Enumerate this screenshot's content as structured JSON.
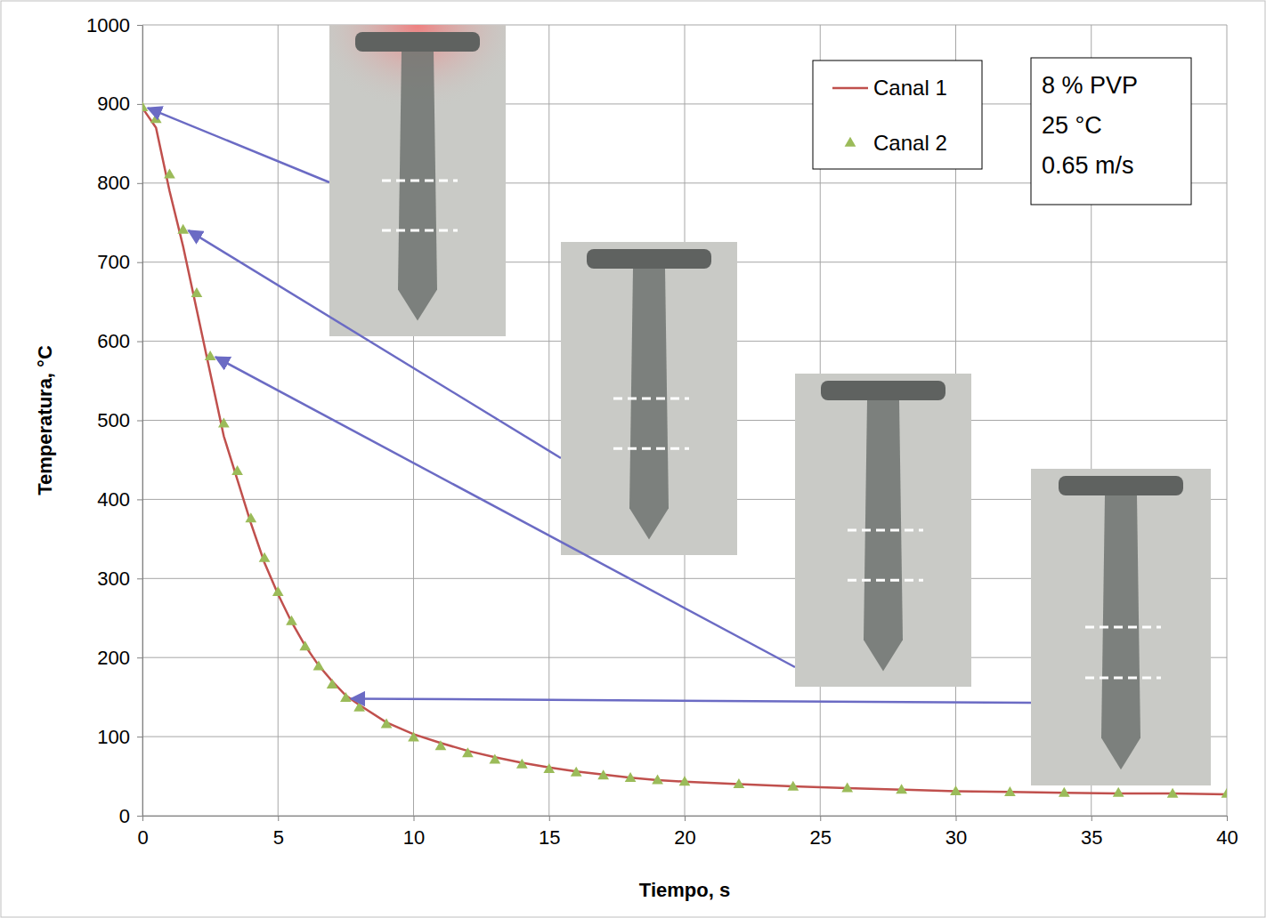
{
  "chart_data": {
    "type": "line",
    "x_label": "Tiempo, s",
    "y_label": "Temperatura, °C",
    "x": [
      0,
      0.5,
      1,
      1.5,
      2,
      2.5,
      3,
      3.5,
      4,
      4.5,
      5,
      5.5,
      6,
      6.5,
      7,
      7.5,
      8,
      9,
      10,
      11,
      12,
      13,
      14,
      15,
      16,
      17,
      18,
      19,
      20,
      22,
      24,
      26,
      28,
      30,
      32,
      34,
      36,
      38,
      40
    ],
    "series": [
      {
        "name": "Canal 1",
        "color": "#c0504d",
        "marker": "none",
        "line_style": "solid",
        "values": [
          895,
          870,
          790,
          720,
          640,
          560,
          480,
          425,
          370,
          320,
          280,
          245,
          215,
          190,
          170,
          152,
          140,
          118,
          103,
          92,
          82,
          74,
          67,
          61,
          56,
          52,
          48,
          45,
          43,
          40,
          37,
          35,
          33,
          31,
          30,
          29,
          28,
          28,
          27
        ]
      },
      {
        "name": "Canal 2",
        "color": "#9bbb59",
        "marker": "triangle",
        "line_style": "none",
        "values": [
          895,
          880,
          810,
          740,
          660,
          580,
          495,
          435,
          375,
          325,
          282,
          245,
          213,
          188,
          165,
          148,
          136,
          115,
          98,
          87,
          78,
          70,
          64,
          58,
          54,
          50,
          47,
          44,
          42,
          39,
          36,
          34,
          32,
          30,
          29,
          28,
          28,
          27,
          27
        ]
      }
    ],
    "xlim": [
      0,
      40
    ],
    "xticks": [
      0,
      5,
      10,
      15,
      20,
      25,
      30,
      35,
      40
    ],
    "ylim": [
      0,
      1000
    ],
    "yticks": [
      0,
      100,
      200,
      300,
      400,
      500,
      600,
      700,
      800,
      900,
      1000
    ],
    "grid": true,
    "legend": "upper right",
    "annotations": [
      "8 % PVP",
      "25 °C",
      "0.65 m/s"
    ]
  }
}
